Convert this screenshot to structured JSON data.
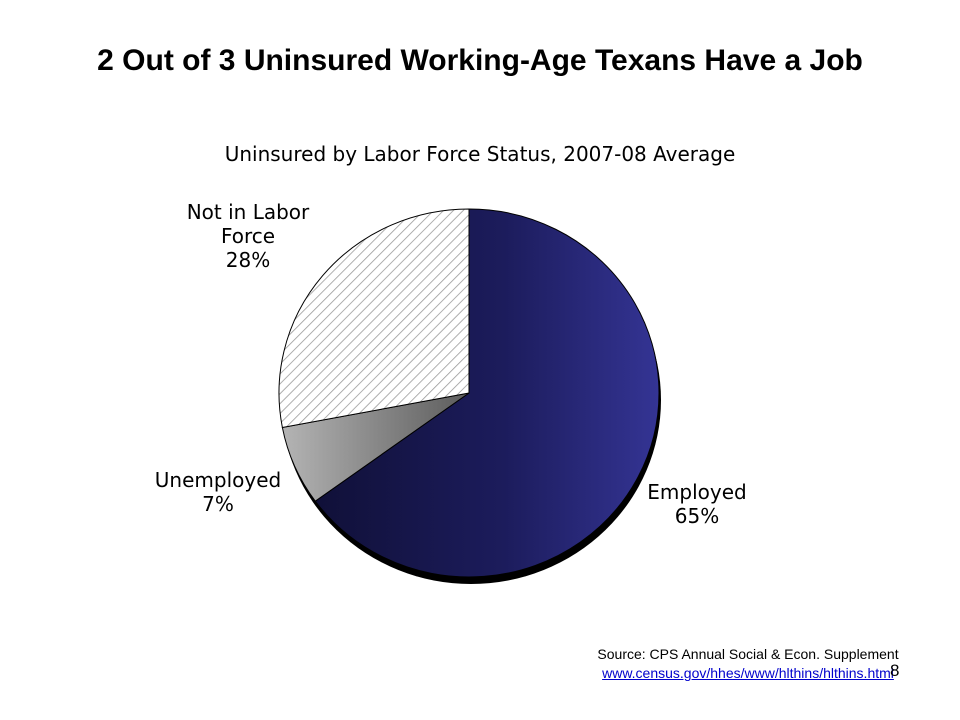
{
  "slide": {
    "title": "2 Out of 3 Uninsured Working-Age Texans Have a Job",
    "source_text": "Source: CPS Annual Social & Econ. Supplement",
    "source_link": "www.census.gov/hhes/www/hlthins/hlthins.html",
    "page_number": "8"
  },
  "chart_data": {
    "type": "pie",
    "title": "Uninsured by Labor Force Status, 2007-08 Average",
    "slices": [
      {
        "name": "Employed",
        "value": 65,
        "label_lines": [
          "Employed",
          "65%"
        ],
        "color": "#23236b",
        "fill_style": "gradient"
      },
      {
        "name": "Unemployed",
        "value": 7,
        "label_lines": [
          "Unemployed",
          "7%"
        ],
        "color": "#8c8c8c",
        "fill_style": "gradient"
      },
      {
        "name": "Not in Labor Force",
        "value": 28,
        "label_lines": [
          "Not in Labor",
          "Force",
          "28%"
        ],
        "color": "#ffffff",
        "fill_style": "diagonal-hatch"
      }
    ]
  }
}
